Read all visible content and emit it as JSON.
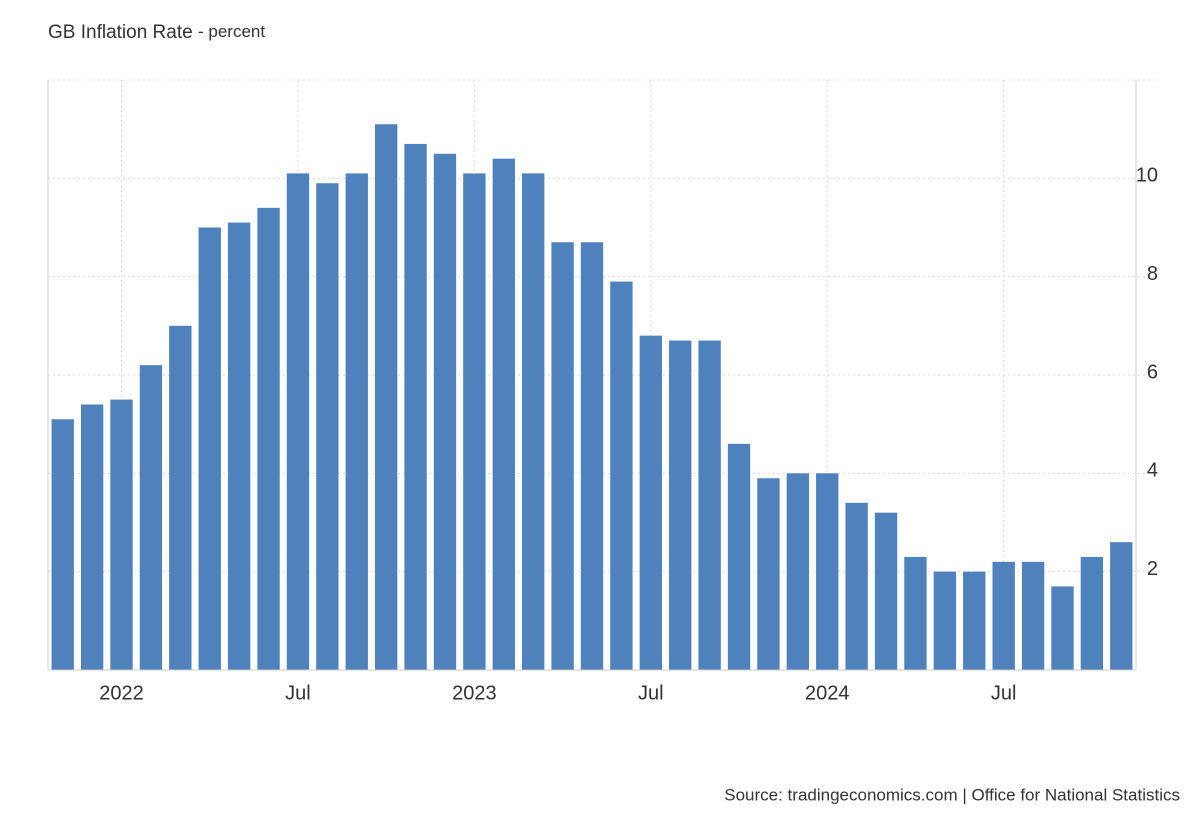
{
  "chart_data": {
    "type": "bar",
    "title": "GB Inflation Rate",
    "subtitle": "- percent",
    "categories": [
      null,
      null,
      "2022",
      null,
      null,
      null,
      null,
      null,
      "Jul",
      null,
      null,
      null,
      null,
      null,
      "2023",
      null,
      null,
      null,
      null,
      null,
      "Jul",
      null,
      null,
      null,
      null,
      null,
      "2024",
      null,
      null,
      null,
      null,
      null,
      "Jul",
      null,
      null,
      null,
      null
    ],
    "values": [
      5.1,
      5.4,
      5.5,
      6.2,
      7.0,
      9.0,
      9.1,
      9.4,
      10.1,
      9.9,
      10.1,
      11.1,
      10.7,
      10.5,
      10.1,
      10.4,
      10.1,
      8.7,
      8.7,
      7.9,
      6.8,
      6.7,
      6.7,
      4.6,
      3.9,
      4.0,
      4.0,
      3.4,
      3.2,
      2.3,
      2.0,
      2.0,
      2.2,
      2.2,
      1.7,
      2.3,
      2.6
    ],
    "color": "#4f81bd",
    "ylim": [
      0,
      12
    ],
    "yticks": [
      2,
      4,
      6,
      8,
      10
    ],
    "grid": true,
    "source": "Source: tradingeconomics.com | Office for National Statistics"
  }
}
